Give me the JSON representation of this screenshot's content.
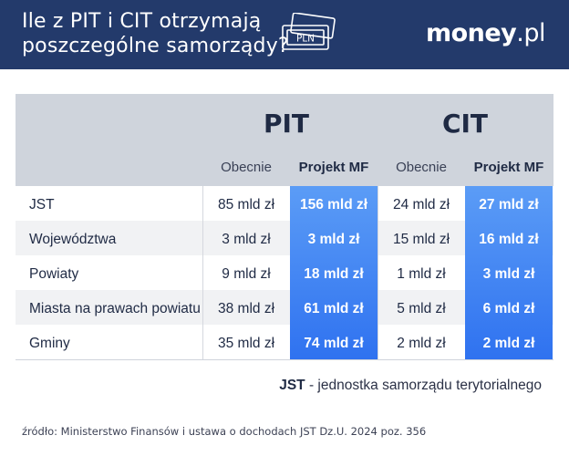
{
  "header": {
    "title_line1": "Ile z PIT i CIT otrzymają",
    "title_line2": "poszczególne samorządy?",
    "icon_text": "PLN",
    "logo_main": "money",
    "logo_suffix": ".pl",
    "background_color": "#233a6b"
  },
  "table": {
    "groups": [
      {
        "name": "PIT",
        "columns": [
          "Obecnie",
          "Projekt MF"
        ]
      },
      {
        "name": "CIT",
        "columns": [
          "Obecnie",
          "Projekt MF"
        ]
      }
    ],
    "highlight_color": "#3f82f3",
    "rows": [
      {
        "label": "JST",
        "pit_now": "85 mld zł",
        "pit_mf": "156 mld zł",
        "cit_now": "24 mld zł",
        "cit_mf": "27 mld zł"
      },
      {
        "label": "Województwa",
        "pit_now": "3 mld zł",
        "pit_mf": "3 mld zł",
        "cit_now": "15 mld zł",
        "cit_mf": "16 mld zł"
      },
      {
        "label": "Powiaty",
        "pit_now": "9 mld zł",
        "pit_mf": "18 mld zł",
        "cit_now": "1 mld zł",
        "cit_mf": "3 mld zł"
      },
      {
        "label": "Miasta na prawach powiatu",
        "pit_now": "38 mld zł",
        "pit_mf": "61 mld zł",
        "cit_now": "5 mld zł",
        "cit_mf": "6 mld zł"
      },
      {
        "label": "Gminy",
        "pit_now": "35 mld zł",
        "pit_mf": "74 mld zł",
        "cit_now": "2 mld zł",
        "cit_mf": "2 mld zł"
      }
    ]
  },
  "footnote": {
    "term": "JST",
    "definition": " - jednostka samorządu terytorialnego"
  },
  "source": "źródło: Ministerstwo Finansów i ustawa o dochodach JST Dz.U. 2024 poz. 356"
}
